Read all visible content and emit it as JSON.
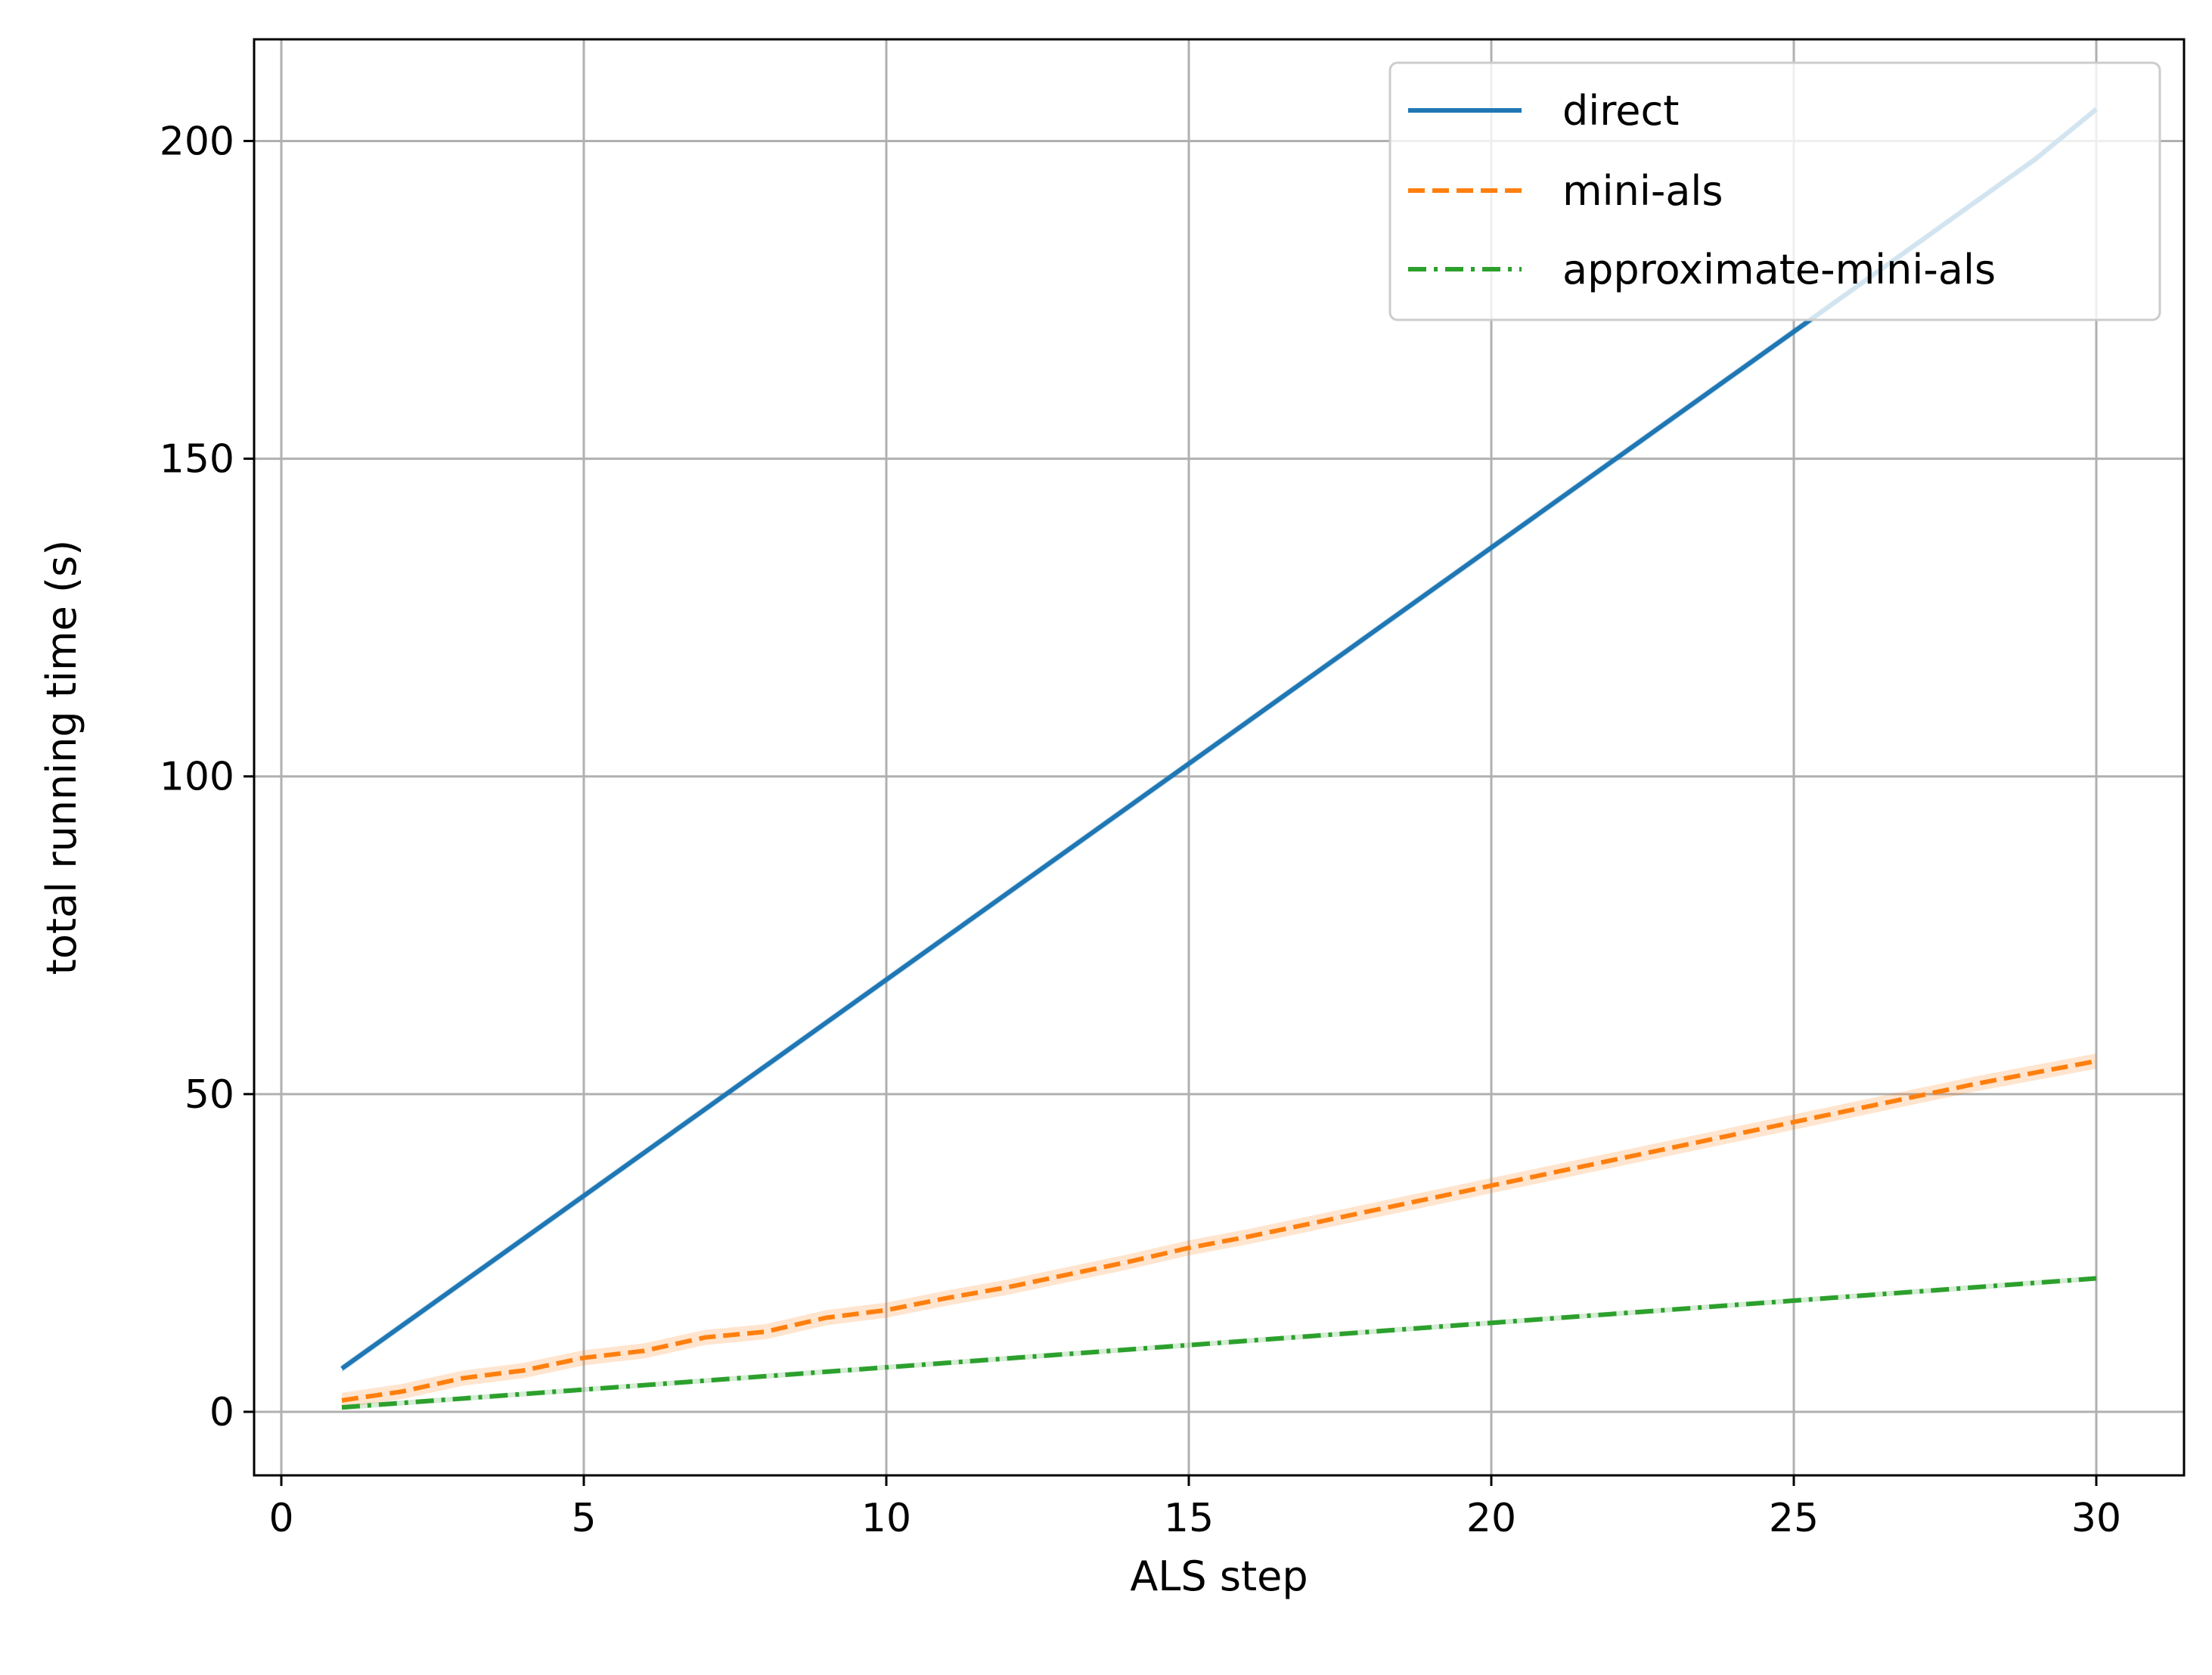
{
  "chart_data": {
    "type": "line",
    "title": "",
    "xlabel": "ALS step",
    "ylabel": "total running time (s)",
    "xlim": [
      -0.45,
      31.45
    ],
    "ylim": [
      -10,
      216
    ],
    "grid": true,
    "legend_position": "top-right",
    "x_ticks": [
      0,
      5,
      10,
      15,
      20,
      25,
      30
    ],
    "x_tick_labels": [
      "0",
      "5",
      "10",
      "15",
      "20",
      "25",
      "30"
    ],
    "y_ticks": [
      0,
      50,
      100,
      150,
      200
    ],
    "y_tick_labels": [
      "0",
      "50",
      "100",
      "150",
      "200"
    ],
    "x": [
      1,
      2,
      3,
      4,
      5,
      6,
      7,
      8,
      9,
      10,
      11,
      12,
      13,
      14,
      15,
      16,
      17,
      18,
      19,
      20,
      21,
      22,
      23,
      24,
      25,
      26,
      27,
      28,
      29,
      30
    ],
    "series": [
      {
        "name": "direct",
        "color": "#1f77b4",
        "dash": "solid",
        "band": 0.6,
        "values": [
          6.8,
          13.6,
          20.4,
          27.2,
          34.0,
          40.8,
          47.6,
          54.4,
          61.2,
          68.0,
          74.8,
          81.6,
          88.4,
          95.2,
          102.0,
          108.8,
          115.6,
          122.4,
          129.2,
          136.0,
          142.8,
          149.6,
          156.4,
          163.2,
          170.0,
          176.8,
          183.6,
          190.4,
          197.2,
          205.0
        ]
      },
      {
        "name": "mini-als",
        "color": "#ff7f0e",
        "dash": "dashed",
        "band": 1.2,
        "values": [
          1.8,
          3.2,
          5.3,
          6.5,
          8.5,
          9.6,
          11.7,
          12.6,
          14.8,
          16.0,
          17.9,
          19.6,
          21.6,
          23.6,
          25.8,
          27.6,
          29.6,
          31.6,
          33.6,
          35.6,
          37.6,
          39.6,
          41.6,
          43.6,
          45.6,
          47.6,
          49.6,
          51.6,
          53.4,
          55.2
        ]
      },
      {
        "name": "approximate-mini-als",
        "color": "#2ca02c",
        "dash": "dashdot",
        "band": 0.4,
        "values": [
          0.7,
          1.4,
          2.1,
          2.8,
          3.5,
          4.2,
          4.9,
          5.6,
          6.3,
          7.0,
          7.7,
          8.4,
          9.1,
          9.8,
          10.5,
          11.2,
          11.9,
          12.6,
          13.3,
          14.0,
          14.7,
          15.4,
          16.1,
          16.8,
          17.5,
          18.2,
          18.9,
          19.6,
          20.3,
          21.0
        ]
      }
    ]
  }
}
